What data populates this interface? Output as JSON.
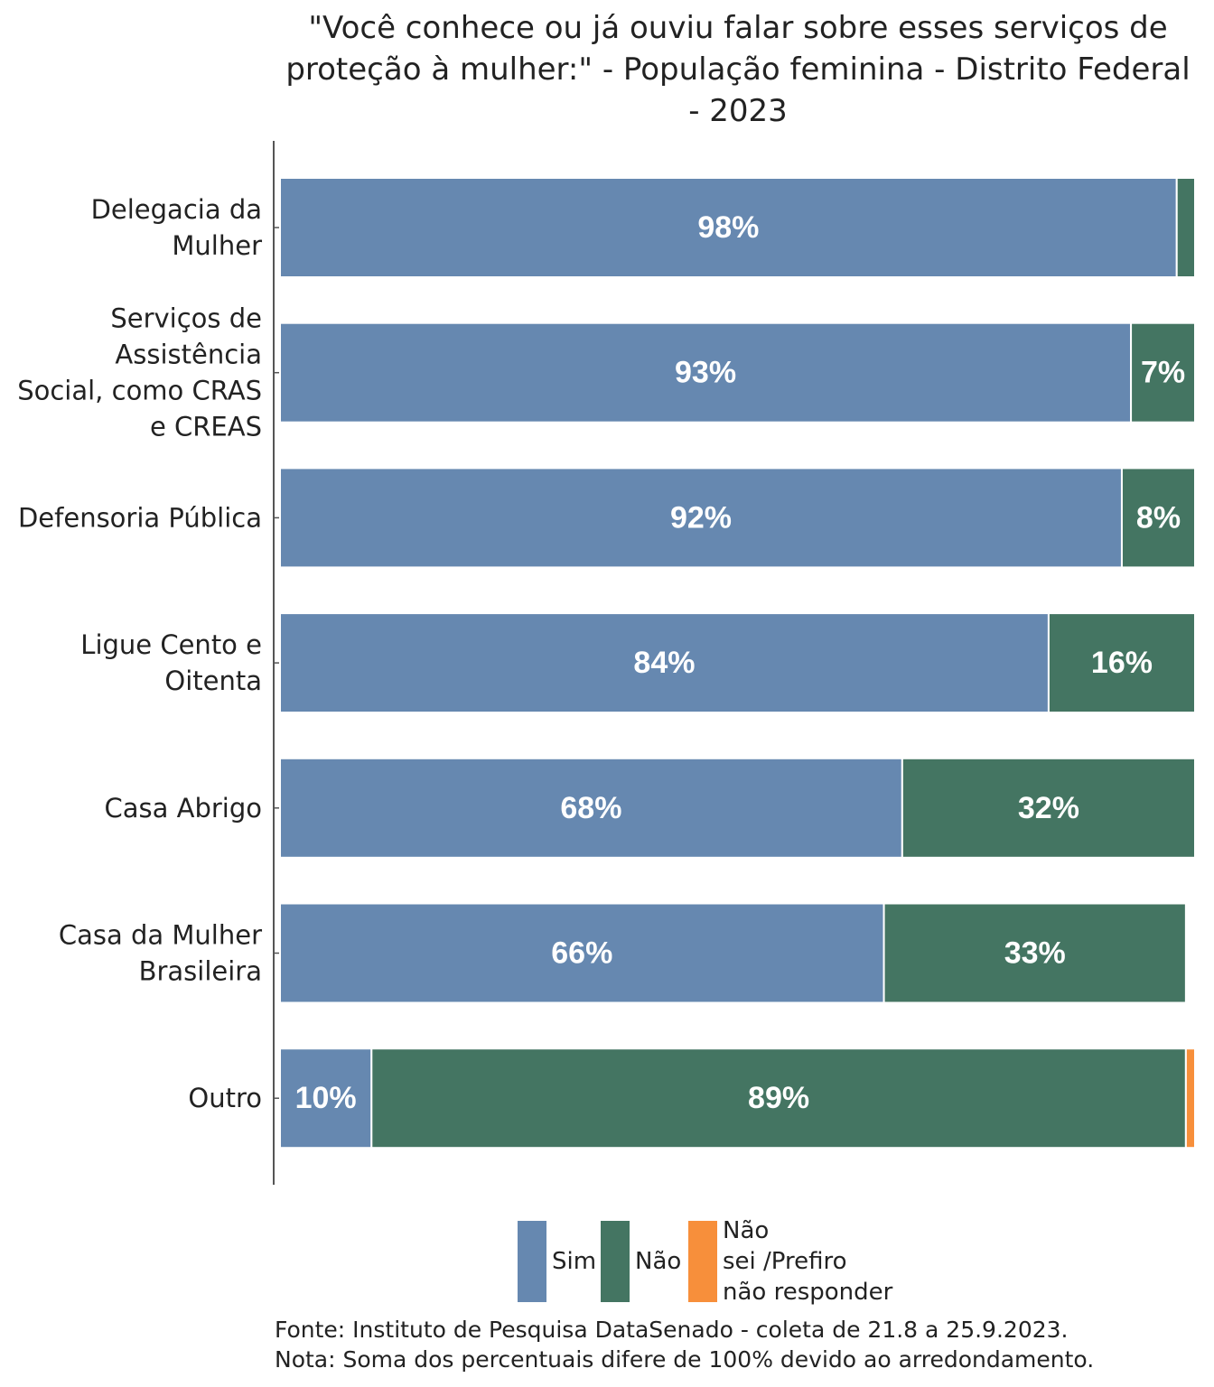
{
  "chart_data": {
    "type": "bar",
    "orientation": "horizontal",
    "stacked": true,
    "title_lines": [
      "\"Você conhece ou já ouviu falar sobre esses serviços de",
      "proteção à mulher:\" - População feminina - Distrito Federal",
      "- 2023"
    ],
    "categories": [
      [
        "Delegacia da",
        "Mulher"
      ],
      [
        "Serviços de",
        "Assistência",
        "Social, como CRAS",
        "e CREAS"
      ],
      [
        "Defensoria Pública"
      ],
      [
        "Ligue Cento e",
        "Oitenta"
      ],
      [
        "Casa Abrigo"
      ],
      [
        "Casa da Mulher",
        "Brasileira"
      ],
      [
        "Outro"
      ]
    ],
    "series": [
      {
        "name": "Sim",
        "color": "#6688b0",
        "values": [
          98,
          93,
          92,
          84,
          68,
          66,
          10
        ],
        "labels": [
          "98%",
          "93%",
          "92%",
          "84%",
          "68%",
          "66%",
          "10%"
        ]
      },
      {
        "name": "Não",
        "color": "#447562",
        "values": [
          2,
          7,
          8,
          16,
          32,
          33,
          89
        ],
        "labels": [
          "",
          "7%",
          "8%",
          "16%",
          "32%",
          "33%",
          "89%"
        ]
      },
      {
        "name": "Não sei /Prefiro não responder",
        "color": "#f78f3b",
        "values": [
          0,
          0,
          0,
          0,
          0,
          0,
          1
        ],
        "labels": [
          "",
          "",
          "",
          "",
          "",
          "",
          ""
        ]
      }
    ],
    "legend": {
      "position": "bottom",
      "entries": [
        {
          "lines": [
            "Sim"
          ]
        },
        {
          "lines": [
            "Não"
          ]
        },
        {
          "lines": [
            "Não",
            "sei /Prefiro",
            "não responder"
          ]
        }
      ]
    },
    "xlim": [
      0,
      100
    ],
    "notes": [
      "Fonte: Instituto de Pesquisa DataSenado - coleta de 21.8 a 25.9.2023.",
      "Nota: Soma dos percentuais difere de 100% devido ao arredondamento."
    ]
  }
}
